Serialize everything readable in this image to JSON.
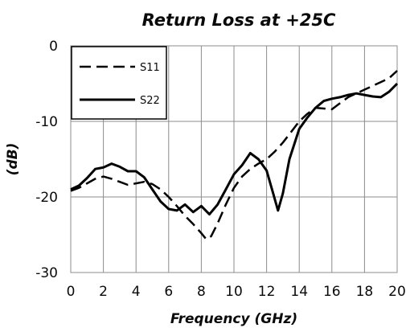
{
  "chart_data": {
    "type": "line",
    "title": "Return Loss at +25C",
    "xlabel": "Frequency (GHz)",
    "ylabel": "(dB)",
    "xlim": [
      0,
      20
    ],
    "ylim": [
      -30,
      0
    ],
    "xticks": [
      0,
      2,
      4,
      6,
      8,
      10,
      12,
      14,
      16,
      18,
      20
    ],
    "yticks": [
      0,
      -10,
      -20,
      -30
    ],
    "grid": true,
    "legend_position": "top-left",
    "series": [
      {
        "name": "S11",
        "style": "dashed",
        "points": [
          [
            0,
            -19.2
          ],
          [
            0.5,
            -18.8
          ],
          [
            1,
            -18.2
          ],
          [
            1.5,
            -17.6
          ],
          [
            2,
            -17.3
          ],
          [
            2.5,
            -17.6
          ],
          [
            3,
            -18.0
          ],
          [
            3.5,
            -18.4
          ],
          [
            4,
            -18.2
          ],
          [
            4.5,
            -18.0
          ],
          [
            5,
            -18.3
          ],
          [
            5.5,
            -19.0
          ],
          [
            6,
            -20.0
          ],
          [
            6.5,
            -21.2
          ],
          [
            7,
            -22.5
          ],
          [
            7.5,
            -23.6
          ],
          [
            8,
            -24.8
          ],
          [
            8.3,
            -25.6
          ],
          [
            8.6,
            -25.2
          ],
          [
            9,
            -23.5
          ],
          [
            9.5,
            -21.0
          ],
          [
            10,
            -18.8
          ],
          [
            10.5,
            -17.3
          ],
          [
            11,
            -16.3
          ],
          [
            11.5,
            -15.6
          ],
          [
            12,
            -15.0
          ],
          [
            12.5,
            -14.0
          ],
          [
            13,
            -12.8
          ],
          [
            13.5,
            -11.4
          ],
          [
            14,
            -10.0
          ],
          [
            14.5,
            -9.0
          ],
          [
            15,
            -8.2
          ],
          [
            15.5,
            -8.3
          ],
          [
            16,
            -8.4
          ],
          [
            16.5,
            -7.6
          ],
          [
            17,
            -6.8
          ],
          [
            17.5,
            -6.3
          ],
          [
            18,
            -5.8
          ],
          [
            18.5,
            -5.3
          ],
          [
            19,
            -4.8
          ],
          [
            19.5,
            -4.3
          ],
          [
            20,
            -3.3
          ]
        ]
      },
      {
        "name": "S22",
        "style": "solid",
        "points": [
          [
            0,
            -19.0
          ],
          [
            0.5,
            -18.5
          ],
          [
            1,
            -17.5
          ],
          [
            1.5,
            -16.3
          ],
          [
            2,
            -16.1
          ],
          [
            2.5,
            -15.6
          ],
          [
            3,
            -16.0
          ],
          [
            3.5,
            -16.6
          ],
          [
            4,
            -16.6
          ],
          [
            4.5,
            -17.4
          ],
          [
            5,
            -19.0
          ],
          [
            5.5,
            -20.6
          ],
          [
            6,
            -21.6
          ],
          [
            6.5,
            -21.8
          ],
          [
            7,
            -21.0
          ],
          [
            7.5,
            -22.0
          ],
          [
            8,
            -21.2
          ],
          [
            8.5,
            -22.3
          ],
          [
            9,
            -21.0
          ],
          [
            9.5,
            -19.0
          ],
          [
            10,
            -17.0
          ],
          [
            10.5,
            -15.8
          ],
          [
            11,
            -14.2
          ],
          [
            11.5,
            -15.0
          ],
          [
            12,
            -16.5
          ],
          [
            12.4,
            -19.5
          ],
          [
            12.7,
            -21.8
          ],
          [
            13,
            -19.5
          ],
          [
            13.4,
            -15.0
          ],
          [
            14,
            -11.0
          ],
          [
            14.5,
            -9.5
          ],
          [
            15,
            -8.2
          ],
          [
            15.5,
            -7.3
          ],
          [
            16,
            -7.0
          ],
          [
            16.5,
            -6.8
          ],
          [
            17,
            -6.5
          ],
          [
            17.5,
            -6.3
          ],
          [
            18,
            -6.5
          ],
          [
            18.5,
            -6.7
          ],
          [
            19,
            -6.8
          ],
          [
            19.5,
            -6.1
          ],
          [
            20,
            -5.0
          ]
        ]
      }
    ]
  }
}
